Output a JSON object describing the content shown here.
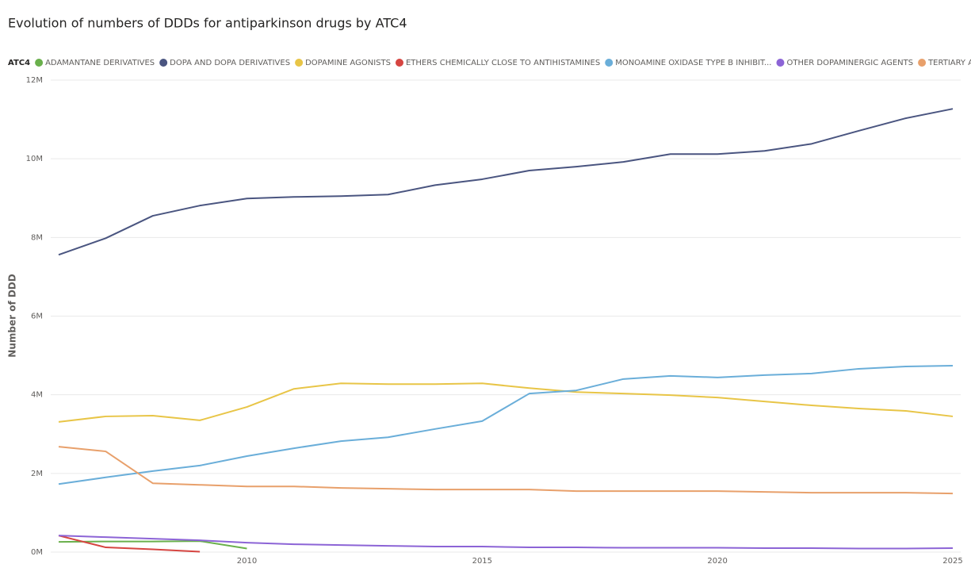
{
  "chart_data": {
    "type": "line",
    "title": "Evolution of numbers of DDDs for antiparkinson drugs by ATC4",
    "legend_title": "ATC4",
    "y_label": "Number of DDD",
    "x": [
      2006,
      2007,
      2008,
      2009,
      2010,
      2011,
      2012,
      2013,
      2014,
      2015,
      2016,
      2017,
      2018,
      2019,
      2020,
      2021,
      2022,
      2023,
      2024,
      2025
    ],
    "xlim": [
      2006,
      2025
    ],
    "xticks": [
      2010,
      2015,
      2020,
      2025
    ],
    "ylim": [
      0,
      12
    ],
    "yticks": [
      {
        "value": 0,
        "label": "0M"
      },
      {
        "value": 2,
        "label": "2M"
      },
      {
        "value": 4,
        "label": "4M"
      },
      {
        "value": 6,
        "label": "6M"
      },
      {
        "value": 8,
        "label": "8M"
      },
      {
        "value": 10,
        "label": "10M"
      },
      {
        "value": 12,
        "label": "12M"
      }
    ],
    "grid": true,
    "series": [
      {
        "name": "ADAMANTANE DERIVATIVES",
        "color": "#6ab04c",
        "values": [
          0.26,
          0.27,
          0.27,
          0.28,
          0.09,
          null,
          null,
          null,
          null,
          null,
          null,
          null,
          null,
          null,
          null,
          null,
          null,
          null,
          null,
          null
        ]
      },
      {
        "name": "DOPA AND DOPA DERIVATIVES",
        "color": "#4a5580",
        "values": [
          7.56,
          7.98,
          8.55,
          8.81,
          8.99,
          9.03,
          9.05,
          9.09,
          9.33,
          9.48,
          9.7,
          9.8,
          9.92,
          10.12,
          10.12,
          10.2,
          10.38,
          10.71,
          11.03,
          11.27
        ]
      },
      {
        "name": "DOPAMINE AGONISTS",
        "color": "#e8c547",
        "values": [
          3.31,
          3.45,
          3.47,
          3.35,
          3.69,
          4.15,
          4.29,
          4.27,
          4.27,
          4.29,
          4.17,
          4.07,
          4.03,
          3.99,
          3.93,
          3.83,
          3.73,
          3.65,
          3.59,
          3.45
        ]
      },
      {
        "name": "ETHERS CHEMICALLY CLOSE TO ANTIHISTAMINES",
        "color": "#d64541",
        "values": [
          0.42,
          0.12,
          0.07,
          0.01,
          null,
          null,
          null,
          null,
          null,
          null,
          null,
          null,
          null,
          null,
          null,
          null,
          null,
          null,
          null,
          null
        ]
      },
      {
        "name": "MONOAMINE OXIDASE TYPE B INHIBIT...",
        "color": "#6aaed9",
        "values": [
          1.73,
          1.9,
          2.06,
          2.2,
          2.44,
          2.64,
          2.82,
          2.92,
          3.13,
          3.33,
          4.03,
          4.11,
          4.4,
          4.48,
          4.44,
          4.5,
          4.54,
          4.66,
          4.72,
          4.74
        ]
      },
      {
        "name": "OTHER DOPAMINERGIC AGENTS",
        "color": "#8c64d6",
        "values": [
          0.42,
          0.38,
          0.34,
          0.3,
          0.24,
          0.2,
          0.18,
          0.16,
          0.14,
          0.14,
          0.12,
          0.12,
          0.11,
          0.11,
          0.11,
          0.1,
          0.1,
          0.09,
          0.09,
          0.1
        ]
      },
      {
        "name": "TERTIARY AMINES",
        "color": "#e8a06b",
        "values": [
          2.68,
          2.56,
          1.75,
          1.71,
          1.67,
          1.67,
          1.63,
          1.61,
          1.59,
          1.59,
          1.59,
          1.55,
          1.55,
          1.55,
          1.55,
          1.53,
          1.51,
          1.51,
          1.51,
          1.49
        ]
      }
    ]
  }
}
